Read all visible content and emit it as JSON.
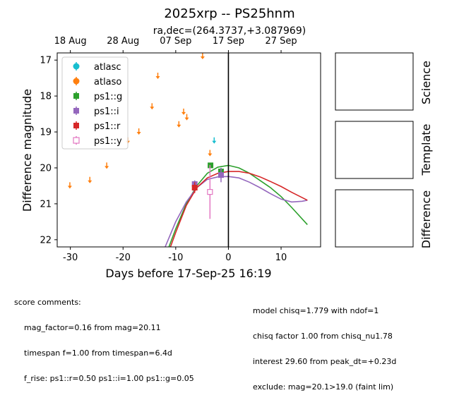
{
  "title": "2025xrp -- PS25hnm",
  "subtitle": "ra,dec=(264.3737,+3.087969)",
  "colors": {
    "atlasc": "#17becf",
    "atlaso": "#ff7f0e",
    "ps1_g": "#2ca02c",
    "ps1_i": "#9467bd",
    "ps1_r": "#d62728",
    "ps1_y": "#e377c2"
  },
  "chart_data": {
    "type": "scatter",
    "xlabel": "Days before 17-Sep-25 16:19",
    "ylabel": "Difference magnitude",
    "xlim": [
      -32.5,
      17.5
    ],
    "ylim": [
      22.2,
      16.8
    ],
    "inverted_y": true,
    "x_ticks": [
      -30,
      -20,
      -10,
      0,
      10
    ],
    "y_ticks": [
      17,
      18,
      19,
      20,
      21,
      22
    ],
    "top_axis": {
      "labels": [
        "18 Aug",
        "28 Aug",
        "07 Sep",
        "17 Sep",
        "27 Sep"
      ],
      "positions": [
        -30,
        -20,
        -10,
        0,
        10
      ]
    },
    "vertical_line_x": 0,
    "legend": {
      "position": "upper-left",
      "entries": [
        {
          "label": "atlasc",
          "series": "atlasc"
        },
        {
          "label": "atlaso",
          "series": "atlaso"
        },
        {
          "label": "ps1::g",
          "series": "ps1_g"
        },
        {
          "label": "ps1::i",
          "series": "ps1_i"
        },
        {
          "label": "ps1::r",
          "series": "ps1_r"
        },
        {
          "label": "ps1::y",
          "series": "ps1_y"
        }
      ]
    },
    "upper_limits": {
      "atlaso": [
        {
          "x": -30.1,
          "y": 20.4
        },
        {
          "x": -26.3,
          "y": 20.25
        },
        {
          "x": -23.1,
          "y": 19.85
        },
        {
          "x": -19.1,
          "y": 19.15
        },
        {
          "x": -17.0,
          "y": 18.9
        },
        {
          "x": -14.5,
          "y": 18.2
        },
        {
          "x": -13.4,
          "y": 17.35
        },
        {
          "x": -9.4,
          "y": 18.7
        },
        {
          "x": -8.5,
          "y": 18.35
        },
        {
          "x": -7.9,
          "y": 18.5
        },
        {
          "x": -4.9,
          "y": 16.8
        },
        {
          "x": -3.5,
          "y": 19.5
        }
      ],
      "atlasc": [
        {
          "x": -2.7,
          "y": 19.15
        }
      ]
    },
    "detections": [
      {
        "series": "ps1_g",
        "marker": "square",
        "points": [
          {
            "x": -3.4,
            "y": 19.93,
            "err": 0.07
          },
          {
            "x": -1.4,
            "y": 20.1,
            "err": 0.1
          }
        ]
      },
      {
        "series": "ps1_i",
        "marker": "square",
        "points": [
          {
            "x": -6.4,
            "y": 20.45,
            "err": 0.1
          },
          {
            "x": -1.4,
            "y": 20.2,
            "err": 0.2
          }
        ]
      },
      {
        "series": "ps1_r",
        "marker": "square",
        "points": [
          {
            "x": -6.4,
            "y": 20.55,
            "err": 0.15
          }
        ]
      },
      {
        "series": "ps1_y",
        "marker": "open-square",
        "points": [
          {
            "x": -3.5,
            "y": 20.67,
            "err": 0.75
          }
        ]
      }
    ],
    "model_curves": [
      {
        "series": "ps1_g",
        "points": [
          [
            -11.3,
            22.2
          ],
          [
            -10,
            21.7
          ],
          [
            -8,
            21.0
          ],
          [
            -6,
            20.5
          ],
          [
            -4,
            20.15
          ],
          [
            -2,
            19.98
          ],
          [
            0,
            19.93
          ],
          [
            2,
            20.0
          ],
          [
            4,
            20.15
          ],
          [
            6,
            20.35
          ],
          [
            8,
            20.55
          ],
          [
            10,
            20.8
          ],
          [
            12,
            21.1
          ],
          [
            15,
            21.58
          ]
        ]
      },
      {
        "series": "ps1_i",
        "points": [
          [
            -12,
            22.2
          ],
          [
            -10,
            21.5
          ],
          [
            -8,
            20.95
          ],
          [
            -6,
            20.55
          ],
          [
            -4,
            20.32
          ],
          [
            -2,
            20.25
          ],
          [
            0,
            20.24
          ],
          [
            2,
            20.28
          ],
          [
            4,
            20.4
          ],
          [
            6,
            20.55
          ],
          [
            8,
            20.72
          ],
          [
            10,
            20.87
          ],
          [
            12,
            20.95
          ],
          [
            14,
            20.93
          ],
          [
            15,
            20.9
          ]
        ]
      },
      {
        "series": "ps1_r",
        "points": [
          [
            -11,
            22.2
          ],
          [
            -10,
            21.8
          ],
          [
            -8,
            21.05
          ],
          [
            -6,
            20.55
          ],
          [
            -4,
            20.28
          ],
          [
            -2,
            20.15
          ],
          [
            0,
            20.1
          ],
          [
            2,
            20.1
          ],
          [
            4,
            20.15
          ],
          [
            6,
            20.25
          ],
          [
            8,
            20.38
          ],
          [
            10,
            20.52
          ],
          [
            12,
            20.68
          ],
          [
            15,
            20.9
          ]
        ]
      }
    ]
  },
  "side_panels": {
    "science": "Science",
    "template": "Template",
    "difference": "Difference"
  },
  "score_comments": {
    "heading": "score comments:",
    "left": [
      "mag_factor=0.16 from mag=20.11",
      "timespan f=1.00 from timespan=6.4d",
      "f_rise: ps1::r=0.50 ps1::i=1.00 ps1::g=0.05"
    ],
    "right": [
      "model chisq=1.779 with ndof=1",
      "chisq factor 1.00 from chisq_nu1.78",
      "interest 29.60 from peak_dt=+0.23d",
      "exclude: mag=20.1>19.0 (faint lim)"
    ]
  }
}
